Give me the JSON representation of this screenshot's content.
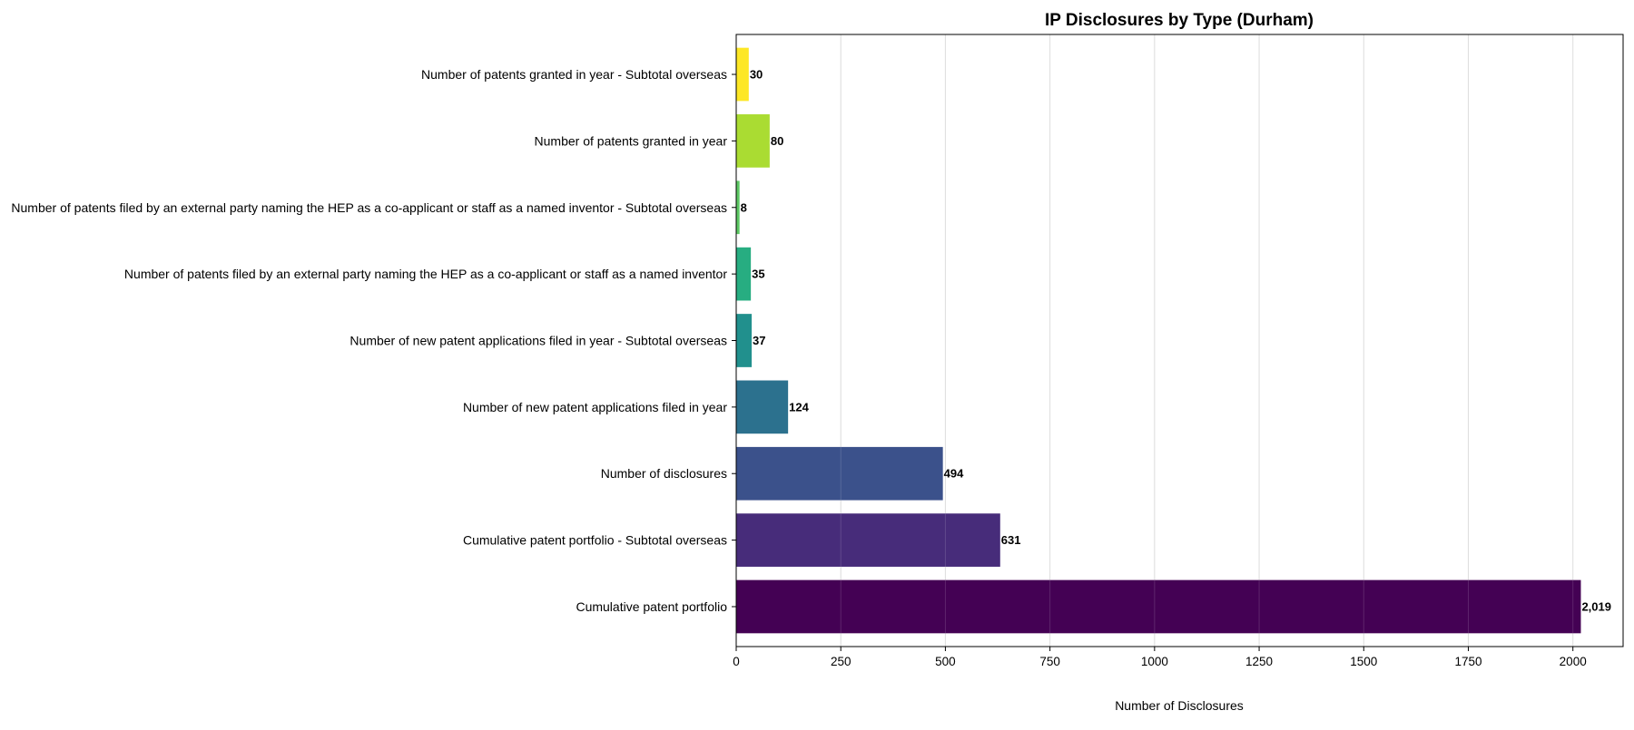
{
  "chart_data": {
    "type": "bar",
    "orientation": "horizontal",
    "title": "IP Disclosures by Type (Durham)",
    "xlabel": "Number of Disclosures",
    "ylabel": "",
    "xlim": [
      0,
      2120
    ],
    "xticks": [
      0,
      250,
      500,
      750,
      1000,
      1250,
      1500,
      1750,
      2000
    ],
    "grid": "vertical",
    "categories": [
      "Cumulative patent portfolio",
      "Cumulative patent portfolio - Subtotal overseas",
      "Number of disclosures",
      "Number of new patent applications filed in year",
      "Number of new patent applications filed in year - Subtotal overseas",
      "Number of patents filed by an external party naming the HEP as a co-applicant or staff as a named inventor",
      "Number of patents filed by an external party naming the HEP as a co-applicant or staff as a named inventor - Subtotal overseas",
      "Number of patents granted in year",
      "Number of patents granted in year - Subtotal overseas"
    ],
    "values": [
      2019,
      631,
      494,
      124,
      37,
      35,
      8,
      80,
      30
    ],
    "value_labels": [
      "2,019",
      "631",
      "494",
      "124",
      "37",
      "35",
      "8",
      "80",
      "30"
    ],
    "colors": [
      "#440154",
      "#472c7a",
      "#3b518b",
      "#2c718e",
      "#21908d",
      "#27ad81",
      "#5cc863",
      "#aadc32",
      "#fde725"
    ]
  }
}
